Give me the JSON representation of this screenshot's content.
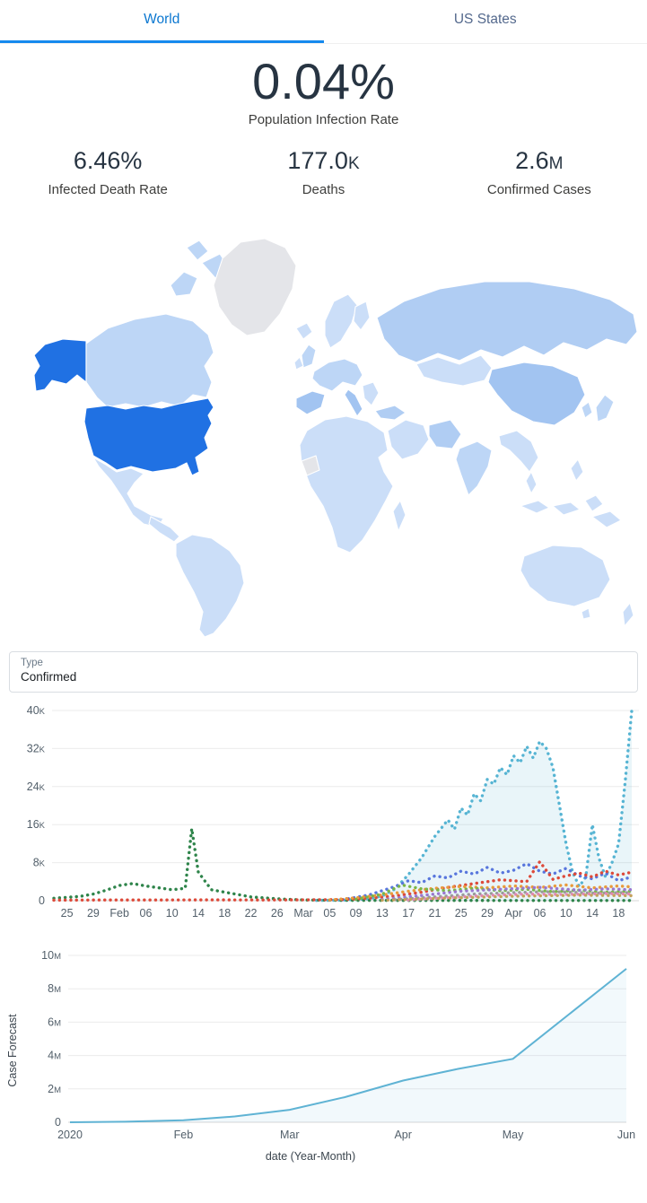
{
  "tabs": {
    "world": "World",
    "us_states": "US States"
  },
  "hero": {
    "value": "0.04%",
    "label": "Population Infection Rate"
  },
  "kpis": [
    {
      "value": "6.46%",
      "suffix": "",
      "label": "Infected Death Rate"
    },
    {
      "value": "177.0",
      "suffix": "K",
      "label": "Deaths"
    },
    {
      "value": "2.6",
      "suffix": "M",
      "label": "Confirmed Cases"
    }
  ],
  "filter": {
    "label": "Type",
    "value": "Confirmed"
  },
  "map": {
    "palette": {
      "default": "#cbdef8",
      "shade1": "#bdd6f6",
      "shade2": "#b0cdf3",
      "shade3": "#a2c4f1",
      "us": "#2071e3",
      "nodata": "#e4e5e9"
    }
  },
  "chart_data": [
    {
      "name": "daily-new-cases-by-country",
      "type": "scatter",
      "ylim": [
        0,
        40000
      ],
      "grid": true,
      "legend": "none",
      "days": 89,
      "y_ticks": [
        {
          "value": 0,
          "label": "0",
          "suffix": ""
        },
        {
          "value": 8000,
          "label": "8",
          "suffix": "K"
        },
        {
          "value": 16000,
          "label": "16",
          "suffix": "K"
        },
        {
          "value": 24000,
          "label": "24",
          "suffix": "K"
        },
        {
          "value": 32000,
          "label": "32",
          "suffix": "K"
        },
        {
          "value": 40000,
          "label": "40",
          "suffix": "K"
        }
      ],
      "x_ticks": [
        {
          "day": 2,
          "label": "25"
        },
        {
          "day": 6,
          "label": "29"
        },
        {
          "day": 10,
          "label": "Feb"
        },
        {
          "day": 14,
          "label": "06"
        },
        {
          "day": 18,
          "label": "10"
        },
        {
          "day": 22,
          "label": "14"
        },
        {
          "day": 26,
          "label": "18"
        },
        {
          "day": 30,
          "label": "22"
        },
        {
          "day": 34,
          "label": "26"
        },
        {
          "day": 38,
          "label": "Mar"
        },
        {
          "day": 42,
          "label": "05"
        },
        {
          "day": 46,
          "label": "09"
        },
        {
          "day": 50,
          "label": "13"
        },
        {
          "day": 54,
          "label": "17"
        },
        {
          "day": 58,
          "label": "21"
        },
        {
          "day": 62,
          "label": "25"
        },
        {
          "day": 66,
          "label": "29"
        },
        {
          "day": 70,
          "label": "Apr"
        },
        {
          "day": 74,
          "label": "06"
        },
        {
          "day": 78,
          "label": "10"
        },
        {
          "day": 82,
          "label": "14"
        },
        {
          "day": 86,
          "label": "18"
        }
      ],
      "series": [
        {
          "name": "series-cyan",
          "color": "#56b4d3",
          "area": true,
          "points": [
            [
              40,
              50
            ],
            [
              44,
              120
            ],
            [
              48,
              400
            ],
            [
              50,
              1000
            ],
            [
              52,
              2500
            ],
            [
              54,
              5500
            ],
            [
              56,
              9000
            ],
            [
              58,
              13500
            ],
            [
              60,
              17000
            ],
            [
              61,
              15000
            ],
            [
              62,
              19500
            ],
            [
              63,
              18000
            ],
            [
              64,
              22500
            ],
            [
              65,
              21000
            ],
            [
              66,
              25500
            ],
            [
              67,
              24500
            ],
            [
              68,
              28000
            ],
            [
              69,
              26500
            ],
            [
              70,
              30500
            ],
            [
              71,
              29000
            ],
            [
              72,
              32500
            ],
            [
              73,
              30000
            ],
            [
              74,
              33500
            ],
            [
              75,
              32000
            ],
            [
              76,
              28000
            ],
            [
              77,
              20000
            ],
            [
              78,
              12000
            ],
            [
              79,
              6000
            ],
            [
              80,
              3000
            ],
            [
              81,
              5000
            ],
            [
              82,
              16000
            ],
            [
              83,
              9000
            ],
            [
              84,
              5000
            ],
            [
              85,
              8000
            ],
            [
              86,
              12000
            ],
            [
              87,
              25000
            ],
            [
              88,
              40000
            ]
          ]
        },
        {
          "name": "series-green-dark",
          "color": "#2e844a",
          "area": false,
          "points": [
            [
              0,
              500
            ],
            [
              2,
              700
            ],
            [
              4,
              900
            ],
            [
              6,
              1400
            ],
            [
              8,
              2200
            ],
            [
              10,
              3200
            ],
            [
              12,
              3600
            ],
            [
              14,
              3100
            ],
            [
              16,
              2700
            ],
            [
              18,
              2300
            ],
            [
              20,
              2600
            ],
            [
              21,
              15150
            ],
            [
              22,
              6000
            ],
            [
              24,
              2300
            ],
            [
              26,
              1800
            ],
            [
              28,
              1300
            ],
            [
              30,
              800
            ],
            [
              34,
              400
            ],
            [
              38,
              150
            ],
            [
              44,
              80
            ],
            [
              52,
              60
            ],
            [
              60,
              50
            ],
            [
              70,
              40
            ],
            [
              80,
              40
            ],
            [
              88,
              30
            ]
          ]
        },
        {
          "name": "series-blue",
          "color": "#5876dd",
          "area": false,
          "points": [
            [
              44,
              200
            ],
            [
              48,
              1200
            ],
            [
              52,
              3000
            ],
            [
              54,
              4200
            ],
            [
              56,
              3800
            ],
            [
              58,
              5200
            ],
            [
              60,
              4800
            ],
            [
              62,
              6200
            ],
            [
              64,
              5600
            ],
            [
              66,
              7000
            ],
            [
              68,
              5800
            ],
            [
              70,
              6400
            ],
            [
              72,
              7800
            ],
            [
              74,
              6200
            ],
            [
              76,
              5600
            ],
            [
              78,
              6800
            ],
            [
              80,
              5200
            ],
            [
              82,
              4600
            ],
            [
              84,
              5800
            ],
            [
              86,
              4200
            ],
            [
              88,
              5000
            ]
          ]
        },
        {
          "name": "series-red",
          "color": "#dd4a3a",
          "area": false,
          "points": [
            [
              0,
              120
            ],
            [
              8,
              160
            ],
            [
              16,
              150
            ],
            [
              24,
              170
            ],
            [
              32,
              160
            ],
            [
              40,
              180
            ],
            [
              44,
              250
            ],
            [
              48,
              500
            ],
            [
              52,
              1000
            ],
            [
              56,
              1800
            ],
            [
              60,
              2800
            ],
            [
              64,
              3600
            ],
            [
              68,
              4400
            ],
            [
              72,
              4000
            ],
            [
              74,
              8200
            ],
            [
              76,
              4500
            ],
            [
              78,
              5200
            ],
            [
              80,
              5800
            ],
            [
              82,
              5000
            ],
            [
              84,
              6200
            ],
            [
              86,
              5400
            ],
            [
              88,
              6000
            ]
          ]
        },
        {
          "name": "series-orange",
          "color": "#e99a3c",
          "area": false,
          "points": [
            [
              42,
              150
            ],
            [
              46,
              600
            ],
            [
              50,
              1200
            ],
            [
              54,
              2000
            ],
            [
              58,
              2600
            ],
            [
              62,
              3000
            ],
            [
              66,
              2700
            ],
            [
              70,
              3100
            ],
            [
              74,
              2800
            ],
            [
              78,
              3300
            ],
            [
              82,
              2700
            ],
            [
              86,
              3100
            ],
            [
              88,
              2900
            ]
          ]
        },
        {
          "name": "series-green-light",
          "color": "#7ab648",
          "area": false,
          "points": [
            [
              46,
              300
            ],
            [
              50,
              1400
            ],
            [
              53,
              3300
            ],
            [
              56,
              2500
            ],
            [
              60,
              2100
            ],
            [
              64,
              2600
            ],
            [
              68,
              2100
            ],
            [
              72,
              2400
            ],
            [
              76,
              1900
            ],
            [
              80,
              2200
            ],
            [
              84,
              1800
            ],
            [
              88,
              2000
            ]
          ]
        },
        {
          "name": "series-purple",
          "color": "#9a77cf",
          "area": false,
          "points": [
            [
              50,
              250
            ],
            [
              56,
              1100
            ],
            [
              62,
              2000
            ],
            [
              68,
              2400
            ],
            [
              74,
              2800
            ],
            [
              80,
              2200
            ],
            [
              84,
              2500
            ],
            [
              88,
              2300
            ]
          ]
        },
        {
          "name": "series-gray",
          "color": "#9a9a9a",
          "area": false,
          "points": [
            [
              52,
              200
            ],
            [
              58,
              800
            ],
            [
              64,
              1400
            ],
            [
              70,
              1700
            ],
            [
              76,
              1900
            ],
            [
              82,
              1600
            ],
            [
              88,
              1700
            ]
          ]
        },
        {
          "name": "series-pink",
          "color": "#e287b2",
          "area": false,
          "points": [
            [
              54,
              150
            ],
            [
              60,
              650
            ],
            [
              66,
              1100
            ],
            [
              72,
              1400
            ],
            [
              78,
              1300
            ],
            [
              84,
              1500
            ],
            [
              88,
              1400
            ]
          ]
        },
        {
          "name": "series-tan",
          "color": "#c5a15a",
          "area": false,
          "points": [
            [
              50,
              100
            ],
            [
              60,
              550
            ],
            [
              70,
              950
            ],
            [
              80,
              1150
            ],
            [
              88,
              1050
            ]
          ]
        }
      ]
    },
    {
      "name": "case-forecast",
      "type": "line",
      "ylabel": "Case Forecast",
      "xlabel": "date (Year-Month)",
      "ylim": [
        0,
        10000000
      ],
      "x_max": 152,
      "grid": true,
      "color": "#5fb3d4",
      "y_ticks": [
        {
          "value": 0,
          "label": "0",
          "suffix": ""
        },
        {
          "value": 2000000,
          "label": "2",
          "suffix": "M"
        },
        {
          "value": 4000000,
          "label": "4",
          "suffix": "M"
        },
        {
          "value": 6000000,
          "label": "6",
          "suffix": "M"
        },
        {
          "value": 8000000,
          "label": "8",
          "suffix": "M"
        },
        {
          "value": 10000000,
          "label": "10",
          "suffix": "M"
        }
      ],
      "x_ticks": [
        {
          "day": 0,
          "label": "2020"
        },
        {
          "day": 31,
          "label": "Feb"
        },
        {
          "day": 60,
          "label": "Mar"
        },
        {
          "day": 91,
          "label": "Apr"
        },
        {
          "day": 121,
          "label": "May"
        },
        {
          "day": 152,
          "label": "Jun"
        }
      ],
      "points": [
        [
          0,
          0
        ],
        [
          15,
          30000
        ],
        [
          31,
          120000
        ],
        [
          45,
          350000
        ],
        [
          60,
          750000
        ],
        [
          75,
          1500000
        ],
        [
          91,
          2500000
        ],
        [
          106,
          3200000
        ],
        [
          121,
          3800000
        ],
        [
          152,
          9200000
        ]
      ]
    }
  ]
}
